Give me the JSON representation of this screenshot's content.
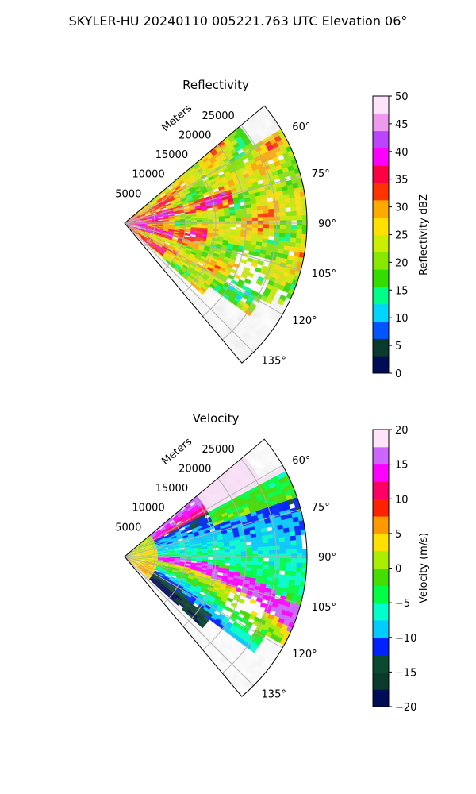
{
  "figure": {
    "suptitle": "SKYLER-HU  20240110  005221.763 UTC Elevation 06°"
  },
  "chart_data": [
    {
      "type": "heatmap",
      "projection": "polar-sector",
      "title": "Reflectivity",
      "range_axis_label": "Meters",
      "range_ticks": [
        5000,
        10000,
        15000,
        20000,
        25000
      ],
      "range_tick_labels": [
        "5000",
        "10000",
        "15000",
        "20000",
        "25000"
      ],
      "rmax": 30000,
      "azimuth_range_deg": [
        50,
        140
      ],
      "azimuth_ticks_deg": [
        60,
        75,
        90,
        105,
        120,
        135
      ],
      "azimuth_tick_labels": [
        "60°",
        "75°",
        "90°",
        "105°",
        "120°",
        "135°"
      ],
      "grid": true,
      "field": "reflectivity",
      "colorbar": {
        "label": "Reflectivity dBZ",
        "min": 0,
        "max": 50,
        "ticks": [
          0,
          5,
          10,
          15,
          20,
          25,
          30,
          35,
          40,
          45,
          50
        ],
        "tick_labels": [
          "0",
          "5",
          "10",
          "15",
          "20",
          "25",
          "30",
          "35",
          "40",
          "45",
          "50"
        ],
        "colors": [
          "#000d56",
          "#0a3a2b",
          "#0055ff",
          "#00d4ff",
          "#00ff88",
          "#33dd00",
          "#88e800",
          "#ccee00",
          "#ffe000",
          "#ffaa00",
          "#ff3300",
          "#ff0044",
          "#ff00ff",
          "#bb44ff",
          "#ee99ee",
          "#fde4fb"
        ]
      },
      "data_description": "Mostly 20-30 dBZ; 33-40 dBZ band near radar and along ~75° azimuth; echo gaps beyond 105°."
    },
    {
      "type": "heatmap",
      "projection": "polar-sector",
      "title": "Velocity",
      "range_axis_label": "Meters",
      "range_ticks": [
        5000,
        10000,
        15000,
        20000,
        25000
      ],
      "range_tick_labels": [
        "5000",
        "10000",
        "15000",
        "20000",
        "25000"
      ],
      "rmax": 30000,
      "azimuth_range_deg": [
        50,
        140
      ],
      "azimuth_ticks_deg": [
        60,
        75,
        90,
        105,
        120,
        135
      ],
      "azimuth_tick_labels": [
        "60°",
        "75°",
        "90°",
        "105°",
        "120°",
        "135°"
      ],
      "grid": true,
      "field": "velocity",
      "colorbar": {
        "label": "Velocity (m/s)",
        "min": -20,
        "max": 20,
        "ticks": [
          -20,
          -15,
          -10,
          -5,
          0,
          5,
          10,
          15,
          20
        ],
        "tick_labels": [
          "−20",
          "−15",
          "−10",
          "−5",
          "0",
          "5",
          "10",
          "15",
          "20"
        ],
        "colors": [
          "#000d56",
          "#0a3a2b",
          "#0a4a30",
          "#0022ff",
          "#00ccff",
          "#00ffcc",
          "#00ff44",
          "#44dd00",
          "#aaee00",
          "#ffe000",
          "#ff9900",
          "#ff2200",
          "#ff0066",
          "#ff00ff",
          "#cc66ff",
          "#fde4fb"
        ]
      },
      "data_description": "Inbound (-5 to -12 m/s) at azimuth ~80-100°, outbound (+10 to +18 m/s) near 60° and along a band toward ~110°."
    }
  ]
}
